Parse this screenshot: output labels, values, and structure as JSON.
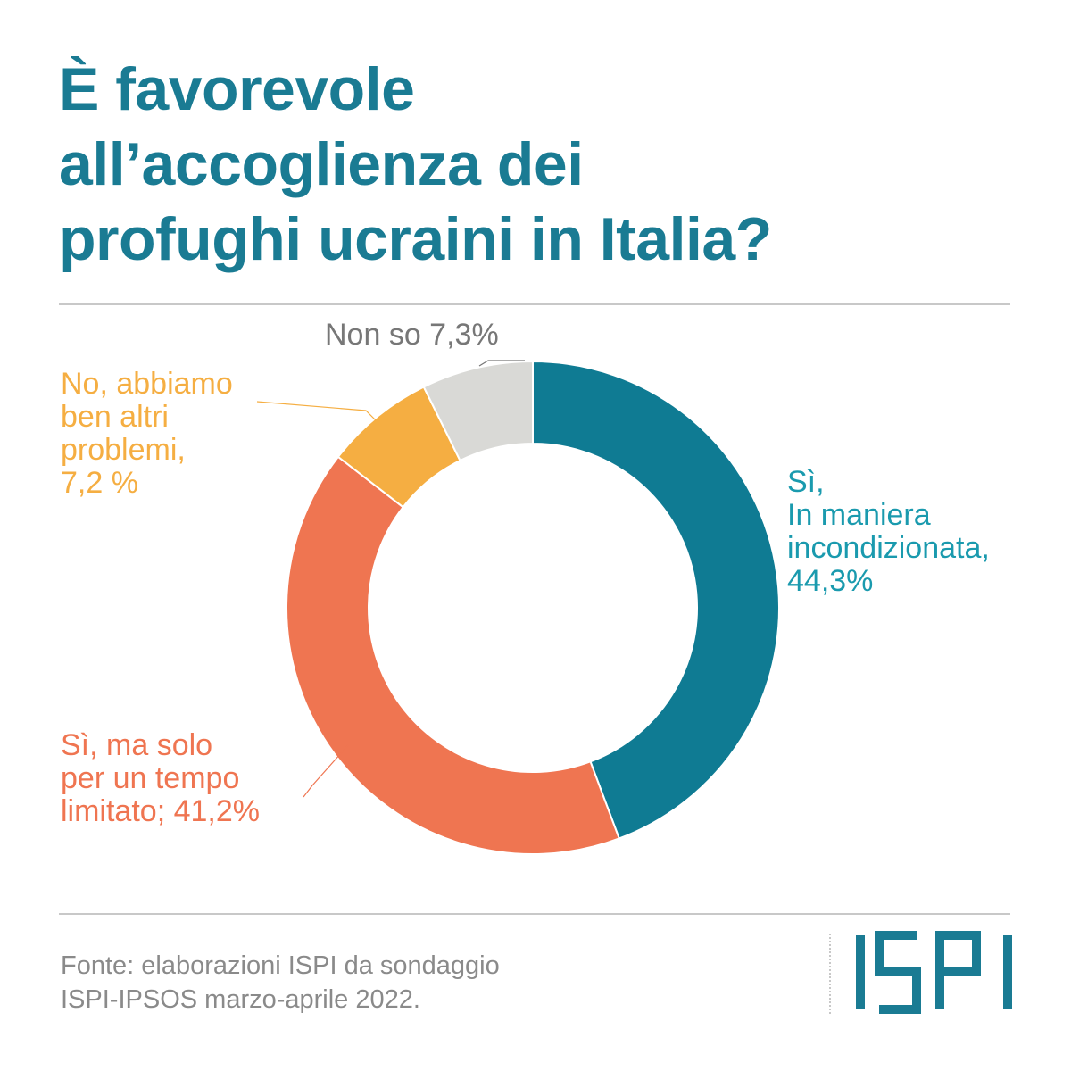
{
  "title_lines": [
    "È favorevole",
    "all’accoglienza dei",
    "profughi ucraini in Italia?"
  ],
  "chart_data": {
    "type": "pie",
    "donut": true,
    "slices": [
      {
        "label": "Sì, In maniera incondizionata,",
        "value": 44.3,
        "value_text": "44,3%",
        "color": "#0f7b93"
      },
      {
        "label": "Sì, ma solo per un tempo limitato;",
        "value": 41.2,
        "value_text": "41,2%",
        "color": "#ef7551"
      },
      {
        "label": "No, abbiamo ben altri problemi,",
        "value": 7.2,
        "value_text": "7,2 %",
        "color": "#f5ae42"
      },
      {
        "label": "Non so",
        "value": 7.3,
        "value_text": "7,3%",
        "color": "#d9d9d6"
      }
    ]
  },
  "labels": {
    "si_incond": {
      "lines": [
        "Sì,",
        "In maniera",
        "incondizionata,",
        "44,3%"
      ],
      "color": "#1a9aae"
    },
    "si_limitato": {
      "lines": [
        "Sì, ma solo",
        "per un tempo",
        "limitato; 41,2%"
      ],
      "color": "#ef7551"
    },
    "no": {
      "lines": [
        "No, abbiamo",
        "ben altri",
        "problemi,",
        "7,2 %"
      ],
      "color": "#f5ae42"
    },
    "non_so": {
      "lines": [
        "Non so 7,3%"
      ],
      "color": "#777777"
    }
  },
  "source_lines": [
    "Fonte: elaborazioni ISPI da sondaggio",
    "ISPI-IPSOS marzo-aprile 2022."
  ],
  "logo_text": "ISPI",
  "logo_color": "#1a7b93"
}
